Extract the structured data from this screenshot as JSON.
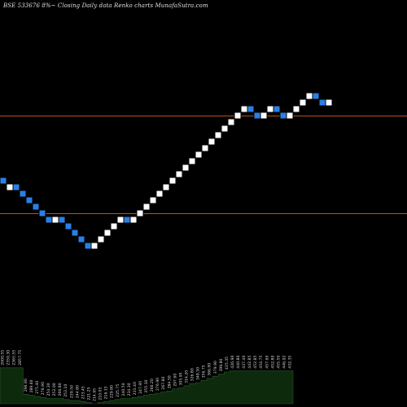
{
  "header": {
    "title": "BSE 533676  8%~ Closing Daily data  Renko  charts MunafaSutra.com"
  },
  "chart_data": {
    "type": "renko",
    "direction_colors": {
      "up": "#ffffff",
      "down": "#2b7fe6",
      "border": "#000000"
    },
    "reference_line_color": "#b5541c",
    "volume_fill": "#0d2a0d",
    "volume_outline": "#2a5a2a",
    "bricks": [
      {
        "dir": "down",
        "close": 300.0
      },
      {
        "dir": "up",
        "close": 300.0
      },
      {
        "dir": "down",
        "close": 290.0
      },
      {
        "dir": "down",
        "close": 280.0
      },
      {
        "dir": "down",
        "close": 270.0
      },
      {
        "dir": "down",
        "close": 260.0
      },
      {
        "dir": "down",
        "close": 250.0
      },
      {
        "dir": "down",
        "close": 240.0
      },
      {
        "dir": "up",
        "close": 250.0
      },
      {
        "dir": "down",
        "close": 240.0
      },
      {
        "dir": "down",
        "close": 230.0
      },
      {
        "dir": "down",
        "close": 220.0
      },
      {
        "dir": "down",
        "close": 210.0
      },
      {
        "dir": "down",
        "close": 200.0
      },
      {
        "dir": "up",
        "close": 210.0
      },
      {
        "dir": "up",
        "close": 220.0
      },
      {
        "dir": "up",
        "close": 230.0
      },
      {
        "dir": "up",
        "close": 240.0
      },
      {
        "dir": "up",
        "close": 250.0
      },
      {
        "dir": "down",
        "close": 240.0
      },
      {
        "dir": "up",
        "close": 250.0
      },
      {
        "dir": "up",
        "close": 260.0
      },
      {
        "dir": "up",
        "close": 270.0
      },
      {
        "dir": "up",
        "close": 280.0
      },
      {
        "dir": "up",
        "close": 290.0
      },
      {
        "dir": "up",
        "close": 300.0
      },
      {
        "dir": "up",
        "close": 310.0
      },
      {
        "dir": "up",
        "close": 320.0
      },
      {
        "dir": "up",
        "close": 330.0
      },
      {
        "dir": "up",
        "close": 340.0
      },
      {
        "dir": "up",
        "close": 350.0
      },
      {
        "dir": "up",
        "close": 360.0
      },
      {
        "dir": "up",
        "close": 370.0
      },
      {
        "dir": "up",
        "close": 380.0
      },
      {
        "dir": "up",
        "close": 390.0
      },
      {
        "dir": "up",
        "close": 400.0
      },
      {
        "dir": "up",
        "close": 410.0
      },
      {
        "dir": "up",
        "close": 420.0
      },
      {
        "dir": "down",
        "close": 410.0
      },
      {
        "dir": "down",
        "close": 400.0
      },
      {
        "dir": "up",
        "close": 410.0
      },
      {
        "dir": "up",
        "close": 420.0
      },
      {
        "dir": "down",
        "close": 410.0
      },
      {
        "dir": "down",
        "close": 400.0
      },
      {
        "dir": "up",
        "close": 410.0
      },
      {
        "dir": "up",
        "close": 420.0
      },
      {
        "dir": "up",
        "close": 430.0
      },
      {
        "dir": "up",
        "close": 440.0
      },
      {
        "dir": "down",
        "close": 430.0
      },
      {
        "dir": "down",
        "close": 420.0
      },
      {
        "dir": "up",
        "close": 430.0
      }
    ],
    "reference_lines": [
      405,
      255
    ],
    "x_labels": [
      "2000.55",
      "2350.30",
      "2365.55",
      "2857.75",
      "296.90",
      "289.60",
      "275.40",
      "276.90",
      "254.30",
      "252.00",
      "266.80",
      "253.10",
      "239.50",
      "244.80",
      "233.45",
      "221.25",
      "214.95",
      "210.05",
      "216.15",
      "229.80",
      "225.75",
      "240.50",
      "234.30",
      "231.40",
      "247.95",
      "255.30",
      "266.20",
      "276.90",
      "267.80",
      "284.50",
      "297.60",
      "305.95",
      "314.20",
      "326.80",
      "348.50",
      "356.75",
      "366.90",
      "379.90",
      "399.80",
      "415.35",
      "426.90",
      "440.80",
      "437.40",
      "442.85",
      "452.85",
      "454.75",
      "457.60",
      "452.80",
      "455.50",
      "446.92",
      "432.35"
    ],
    "volume_levels": [
      0.34,
      0.34,
      0.34,
      0.34,
      0.09,
      0.08,
      0.07,
      0.06,
      0.05,
      0.05,
      0.05,
      0.04,
      0.03,
      0.03,
      0.02,
      0.01,
      0.0,
      0.01,
      0.02,
      0.03,
      0.04,
      0.05,
      0.05,
      0.06,
      0.07,
      0.08,
      0.09,
      0.1,
      0.11,
      0.12,
      0.14,
      0.15,
      0.17,
      0.19,
      0.2,
      0.22,
      0.24,
      0.26,
      0.28,
      0.3,
      0.31,
      0.31,
      0.31,
      0.31,
      0.31,
      0.31,
      0.31,
      0.31,
      0.31,
      0.31,
      0.31
    ]
  }
}
